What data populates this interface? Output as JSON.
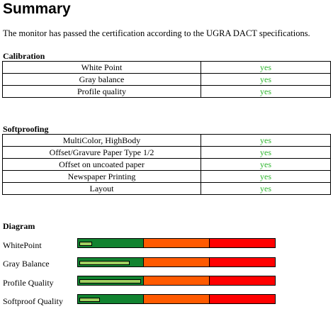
{
  "title": "Summary",
  "intro": "The monitor has passed the certification according to the UGRA DACT specifications.",
  "calibration": {
    "heading": "Calibration",
    "rows": [
      {
        "item": "White Point",
        "value": "yes"
      },
      {
        "item": "Gray balance",
        "value": "yes"
      },
      {
        "item": "Profile quality",
        "value": "yes"
      }
    ]
  },
  "softproofing": {
    "heading": "Softproofing",
    "rows": [
      {
        "item": "MultiColor, HighBody",
        "value": "yes"
      },
      {
        "item": "Offset/Gravure Paper Type 1/2",
        "value": "yes"
      },
      {
        "item": "Offset on uncoated paper",
        "value": "yes"
      },
      {
        "item": "Newspaper Printing",
        "value": "yes"
      },
      {
        "item": "Layout",
        "value": "yes"
      }
    ]
  },
  "diagram": {
    "heading": "Diagram",
    "zone_colors": {
      "good": "#118330",
      "medium": "#ff5a00",
      "bad": "#ff0000"
    },
    "level_color": "#9fcf60",
    "items": [
      {
        "label": "WhitePoint",
        "level": 0.06
      },
      {
        "label": "Gray Balance",
        "level": 0.25
      },
      {
        "label": "Profile Quality",
        "level": 0.31
      },
      {
        "label": "Softproof Quality",
        "level": 0.1
      }
    ]
  }
}
